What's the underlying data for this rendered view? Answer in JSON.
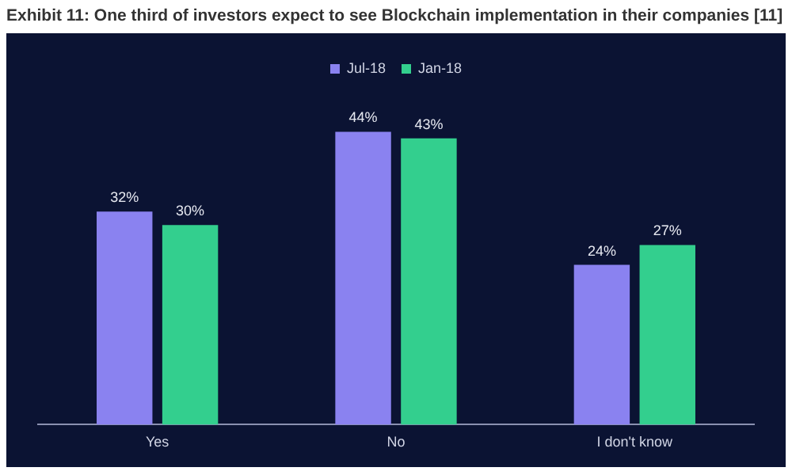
{
  "chart_data": {
    "type": "bar",
    "title": "Exhibit 11: One third of investors expect to see Blockchain implementation in their companies [11]",
    "categories": [
      "Yes",
      "No",
      "I don't know"
    ],
    "series": [
      {
        "name": "Jul-18",
        "color": "#8a82f0",
        "values": [
          32,
          44,
          24
        ],
        "value_labels": [
          "32%",
          "44%",
          "24%"
        ]
      },
      {
        "name": "Jan-18",
        "color": "#33cf8e",
        "values": [
          30,
          43,
          27
        ],
        "value_labels": [
          "30%",
          "43%",
          "27%"
        ]
      }
    ],
    "legend": "top",
    "grid": false
  }
}
